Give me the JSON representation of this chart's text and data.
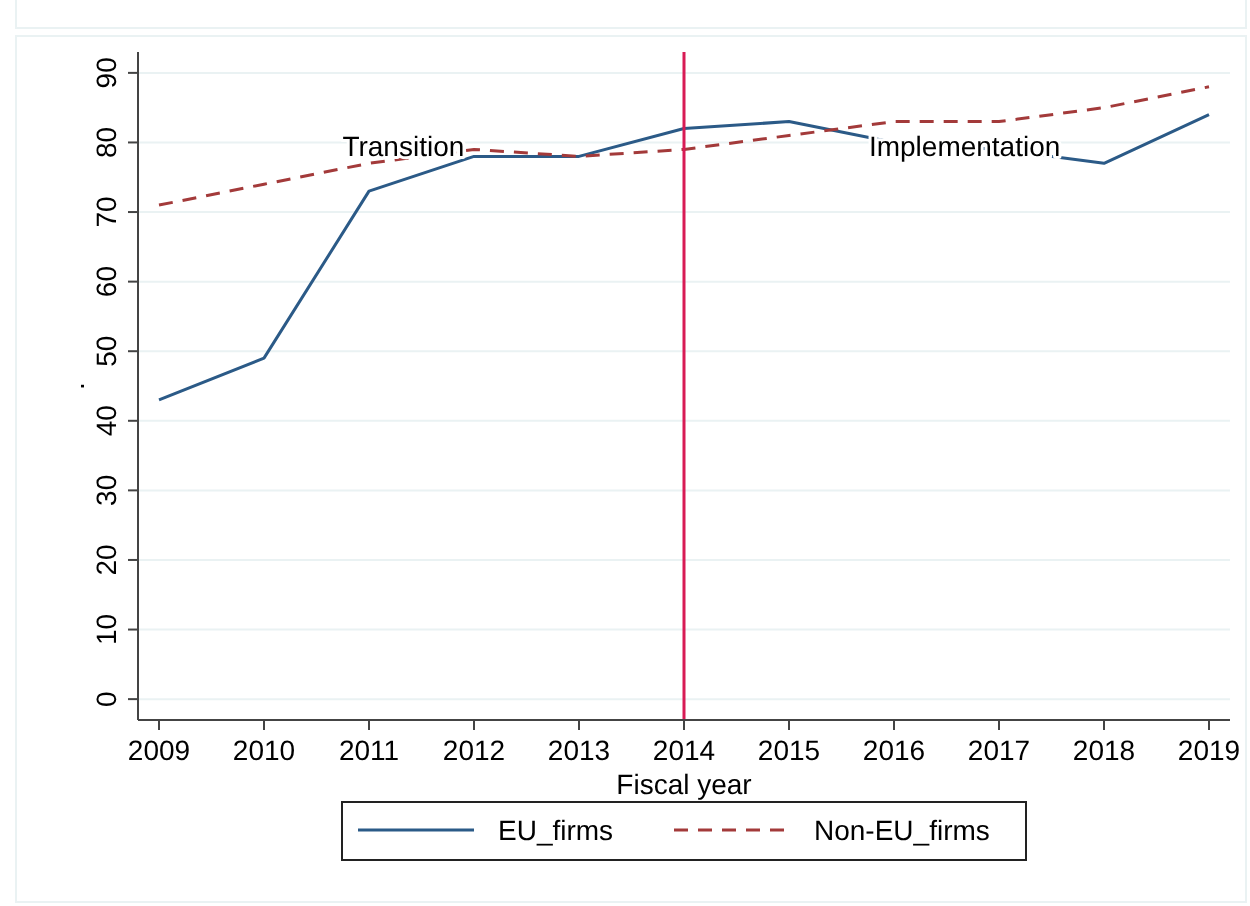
{
  "chart_data": {
    "type": "line",
    "xlabel": "Fiscal year",
    "ylabel": ".",
    "x": [
      2009,
      2010,
      2011,
      2012,
      2013,
      2014,
      2015,
      2016,
      2017,
      2018,
      2019
    ],
    "series": [
      {
        "name": "EU_firms",
        "color": "#2b5a87",
        "line_style": "solid",
        "values": [
          43,
          49,
          73,
          78,
          78,
          82,
          83,
          80,
          79,
          77,
          84
        ]
      },
      {
        "name": "Non-EU_firms",
        "color": "#a33a3a",
        "line_style": "dashed",
        "values": [
          71,
          74,
          77,
          79,
          78,
          79,
          81,
          83,
          83,
          85,
          88
        ]
      }
    ],
    "xlim": [
      2008.8,
      2019.2
    ],
    "xticks": [
      2009,
      2010,
      2011,
      2012,
      2013,
      2014,
      2015,
      2016,
      2017,
      2018,
      2019
    ],
    "ylim": [
      -3,
      93
    ],
    "yticks": [
      0,
      10,
      20,
      30,
      40,
      50,
      60,
      70,
      80,
      90
    ],
    "grid": "y",
    "legend": "bottom",
    "marker": "none",
    "ref_lines": [
      {
        "axis": "x",
        "value": 2014,
        "color": "#d81b55"
      }
    ],
    "annotations": [
      "Transition",
      "Implementation"
    ]
  }
}
